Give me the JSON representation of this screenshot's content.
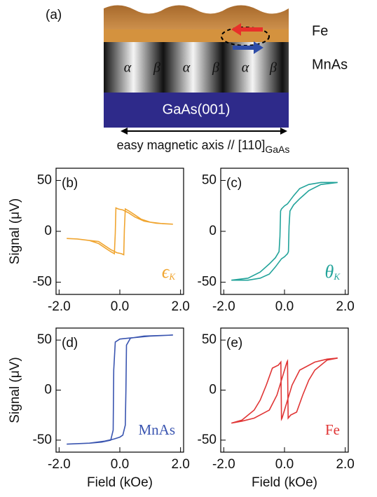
{
  "diagram": {
    "label": "(a)",
    "layers": [
      "Fe",
      "MnAs",
      "GaAs(001)"
    ],
    "domains": [
      "α",
      "β",
      "α",
      "β",
      "α",
      "β"
    ],
    "axis_label": "easy magnetic axis // [110]",
    "axis_label_subscript": "GaAs"
  },
  "chart_data": [
    {
      "type": "line",
      "label": "(b)",
      "annotation": "ϵ",
      "annotation_subscript": "K",
      "ylabel": "Signal (μV)",
      "x": [
        1.75,
        1.2,
        0.8,
        0.5,
        0.3,
        0.1,
        -0.05,
        -0.13,
        -0.15,
        -0.18,
        -0.3,
        -0.45,
        -0.7,
        -1.0,
        -1.4,
        -1.75,
        -1.4,
        -1.0,
        -0.7,
        -0.5,
        -0.3,
        -0.1,
        0.05,
        0.13,
        0.15,
        0.18,
        0.3,
        0.45,
        0.7,
        1.0,
        1.4,
        1.75
      ],
      "series": [
        {
          "color": "#f0a530",
          "values": [
            7,
            8,
            10,
            14,
            18,
            21,
            22,
            23,
            -2,
            -22,
            -20,
            -17,
            -12,
            -9,
            -7.5,
            -7,
            -7.5,
            -9,
            -10,
            -14,
            -18,
            -21,
            -22,
            -23,
            2,
            22,
            20,
            17,
            12,
            9,
            7.5,
            7
          ]
        }
      ],
      "xlim": [
        -2.1,
        2.1
      ],
      "ylim": [
        -62,
        62
      ],
      "xticks": [
        {
          "value": -2,
          "label": "-2.0"
        },
        {
          "value": 0,
          "label": "0.0"
        },
        {
          "value": 2,
          "label": "2.0"
        }
      ],
      "yticks": [
        -50,
        0,
        50
      ]
    },
    {
      "type": "line",
      "label": "(c)",
      "annotation": "θ",
      "annotation_subscript": "K",
      "x": [
        1.75,
        1.2,
        0.8,
        0.5,
        0.3,
        0.1,
        0,
        -0.1,
        -0.13,
        -0.15,
        -0.18,
        -0.3,
        -0.5,
        -0.8,
        -1.2,
        -1.75,
        -1.2,
        -0.8,
        -0.5,
        -0.3,
        -0.1,
        0,
        0.1,
        0.13,
        0.15,
        0.18,
        0.3,
        0.5,
        0.8,
        1.2,
        1.75
      ],
      "series": [
        {
          "color": "#22a39a",
          "values": [
            48,
            48,
            46,
            42,
            35,
            27,
            25,
            22,
            20,
            -5,
            -20,
            -26,
            -32,
            -40,
            -46,
            -48,
            -48,
            -46,
            -42,
            -35,
            -27,
            -25,
            -22,
            -20,
            5,
            20,
            26,
            32,
            40,
            46,
            48
          ]
        }
      ],
      "xlim": [
        -2.1,
        2.1
      ],
      "ylim": [
        -62,
        62
      ],
      "xticks": [
        {
          "value": -2,
          "label": "-2.0"
        },
        {
          "value": 0,
          "label": "0.0"
        },
        {
          "value": 2,
          "label": "2.0"
        }
      ],
      "yticks": [
        -50,
        0,
        50
      ]
    },
    {
      "type": "line",
      "label": "(d)",
      "annotation": "MnAs",
      "ylabel": "Signal (μV)",
      "xlabel": "Field (kOe)",
      "x": [
        1.75,
        1.0,
        0.3,
        0,
        -0.15,
        -0.2,
        -0.22,
        -0.3,
        -0.6,
        -1.0,
        -1.75,
        -1.0,
        -0.5,
        -0.2,
        0,
        0.1,
        0.18,
        0.2,
        0.22,
        0.35,
        0.8,
        1.75
      ],
      "series": [
        {
          "color": "#3a55b0",
          "values": [
            55,
            54,
            52,
            51,
            48,
            20,
            -40,
            -50,
            -52,
            -53,
            -54,
            -53,
            -51,
            -49,
            -47,
            -45,
            -35,
            0,
            45,
            52,
            54,
            55
          ]
        }
      ],
      "xlim": [
        -2.1,
        2.1
      ],
      "ylim": [
        -62,
        62
      ],
      "xticks": [
        {
          "value": -2,
          "label": "-2.0"
        },
        {
          "value": 0,
          "label": "0.0"
        },
        {
          "value": 2,
          "label": "2.0"
        }
      ],
      "yticks": [
        -50,
        0,
        50
      ]
    },
    {
      "type": "line",
      "label": "(e)",
      "annotation": "Fe",
      "xlabel": "Field (kOe)",
      "x": [
        1.75,
        1.4,
        1.0,
        0.5,
        0.25,
        0.1,
        0,
        -0.08,
        -0.1,
        -0.12,
        -0.2,
        -0.4,
        -0.6,
        -0.8,
        -1.0,
        -1.4,
        -1.75,
        -1.4,
        -1.0,
        -0.5,
        -0.25,
        -0.1,
        0,
        0.08,
        0.1,
        0.12,
        0.2,
        0.4,
        0.6,
        0.8,
        1.0,
        1.4,
        1.75
      ],
      "series": [
        {
          "color": "#e03535",
          "values": [
            32,
            31,
            28,
            20,
            5,
            -10,
            -20,
            -28,
            -29,
            28,
            25,
            22,
            5,
            -10,
            -20,
            -30,
            -33,
            -31,
            -28,
            -20,
            -5,
            10,
            20,
            28,
            29,
            -28,
            -25,
            -22,
            -5,
            10,
            20,
            30,
            32
          ]
        }
      ],
      "xlim": [
        -2.1,
        2.1
      ],
      "ylim": [
        -62,
        62
      ],
      "xticks": [
        {
          "value": -2,
          "label": "-2.0"
        },
        {
          "value": 0,
          "label": "0.0"
        },
        {
          "value": 2,
          "label": "2.0"
        }
      ],
      "yticks": [
        -50,
        0,
        50
      ]
    }
  ]
}
